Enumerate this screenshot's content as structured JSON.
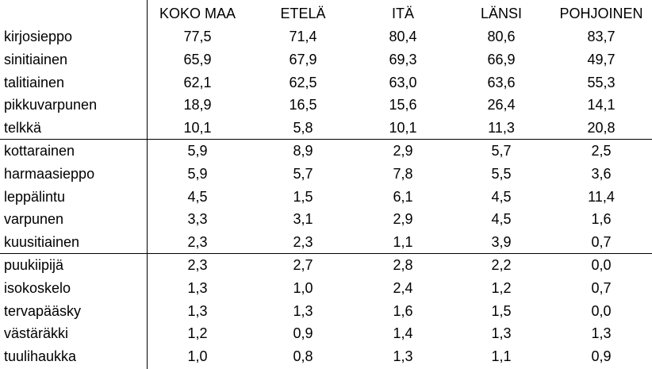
{
  "table": {
    "header": [
      "KOKO MAA",
      "ETELÄ",
      "ITÄ",
      "LÄNSI",
      "POHJOINEN"
    ],
    "groups": [
      [
        [
          "kirjosieppo",
          "77,5",
          "71,4",
          "80,4",
          "80,6",
          "83,7"
        ],
        [
          "sinitiainen",
          "65,9",
          "67,9",
          "69,3",
          "66,9",
          "49,7"
        ],
        [
          "talitiainen",
          "62,1",
          "62,5",
          "63,0",
          "63,6",
          "55,3"
        ],
        [
          "pikkuvarpunen",
          "18,9",
          "16,5",
          "15,6",
          "26,4",
          "14,1"
        ],
        [
          "telkkä",
          "10,1",
          "5,8",
          "10,1",
          "11,3",
          "20,8"
        ]
      ],
      [
        [
          "kottarainen",
          "5,9",
          "8,9",
          "2,9",
          "5,7",
          "2,5"
        ],
        [
          "harmaasieppo",
          "5,9",
          "5,7",
          "7,8",
          "5,5",
          "3,6"
        ],
        [
          "leppälintu",
          "4,5",
          "1,5",
          "6,1",
          "4,5",
          "11,4"
        ],
        [
          "varpunen",
          "3,3",
          "3,1",
          "2,9",
          "4,5",
          "1,6"
        ],
        [
          "kuusitiainen",
          "2,3",
          "2,3",
          "1,1",
          "3,9",
          "0,7"
        ]
      ],
      [
        [
          "puukiipijä",
          "2,3",
          "2,7",
          "2,8",
          "2,2",
          "0,0"
        ],
        [
          "isokoskelo",
          "1,3",
          "1,0",
          "2,4",
          "1,2",
          "0,7"
        ],
        [
          "tervapääsky",
          "1,3",
          "1,3",
          "1,6",
          "1,5",
          "0,0"
        ],
        [
          "västäräkki",
          "1,2",
          "0,9",
          "1,4",
          "1,3",
          "1,3"
        ],
        [
          "tuulihaukka",
          "1,0",
          "0,8",
          "1,3",
          "1,1",
          "0,9"
        ]
      ]
    ]
  }
}
